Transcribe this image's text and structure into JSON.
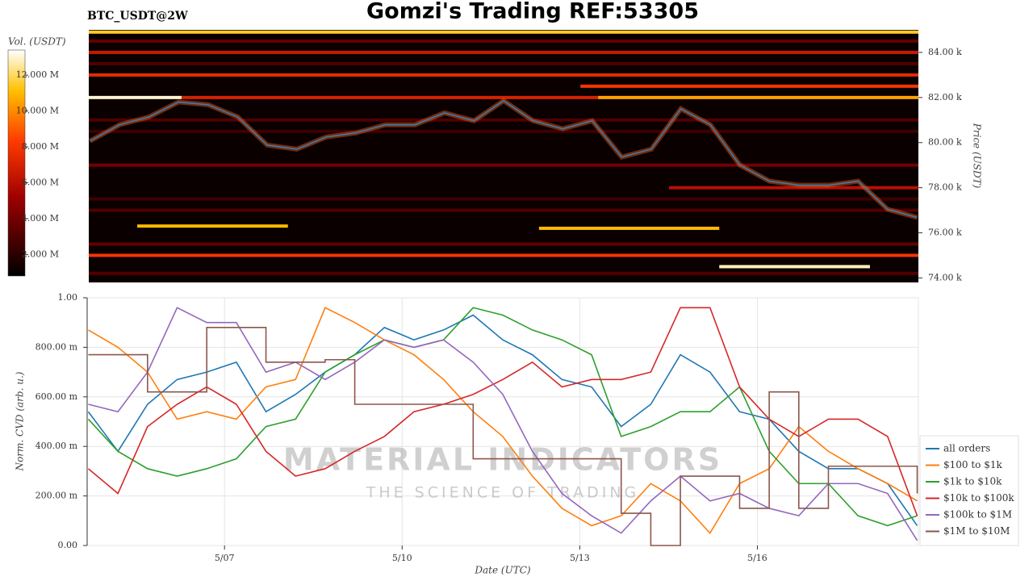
{
  "title": "Gomzi's Trading REF:53305",
  "watermark": {
    "brand": "MATERIAL INDICATORS",
    "tagline": "THE SCIENCE OF TRADING"
  },
  "chart_data": [
    {
      "type": "heatmap",
      "title": "BTC_USDT@2W",
      "y_label": "Price (USDT)",
      "xlim": [
        4.68,
        18.72
      ],
      "ylim": [
        73800,
        85000
      ],
      "yticks": [
        {
          "value": 74000,
          "label": "74.00 k"
        },
        {
          "value": 76000,
          "label": "76.00 k"
        },
        {
          "value": 78000,
          "label": "78.00 k"
        },
        {
          "value": 80000,
          "label": "80.00 k"
        },
        {
          "value": 82000,
          "label": "82.00 k"
        },
        {
          "value": 84000,
          "label": "84.00 k"
        }
      ],
      "colorbar": {
        "label": "Vol. (USDT)",
        "lim": [
          800000,
          13400000
        ],
        "ticks": [
          {
            "value": 2000000,
            "label": "2.000 M"
          },
          {
            "value": 4000000,
            "label": "4.000 M"
          },
          {
            "value": 6000000,
            "label": "6.000 M"
          },
          {
            "value": 8000000,
            "label": "8.000 M"
          },
          {
            "value": 10000000,
            "label": "10.000 M"
          },
          {
            "value": 12000000,
            "label": "12.000 M"
          }
        ]
      },
      "levels": [
        {
          "price": 84900,
          "volume": 11500000,
          "x": [
            4.68,
            18.72
          ]
        },
        {
          "price": 84000,
          "volume": 6500000,
          "x": [
            4.68,
            18.72
          ]
        },
        {
          "price": 83000,
          "volume": 7500000,
          "x": [
            4.68,
            18.72
          ]
        },
        {
          "price": 82500,
          "volume": 8000000,
          "x": [
            13.0,
            18.72
          ]
        },
        {
          "price": 82000,
          "volume": 13000000,
          "x": [
            4.68,
            6.25
          ]
        },
        {
          "price": 82000,
          "volume": 7000000,
          "x": [
            6.25,
            13.3
          ]
        },
        {
          "price": 82000,
          "volume": 10500000,
          "x": [
            13.3,
            18.72
          ]
        },
        {
          "price": 83500,
          "volume": 3000000,
          "x": [
            4.68,
            18.72
          ]
        },
        {
          "price": 84500,
          "volume": 3500000,
          "x": [
            4.68,
            18.72
          ]
        },
        {
          "price": 81000,
          "volume": 3000000,
          "x": [
            4.68,
            18.72
          ]
        },
        {
          "price": 80500,
          "volume": 2500000,
          "x": [
            4.68,
            18.72
          ]
        },
        {
          "price": 79000,
          "volume": 4000000,
          "x": [
            4.68,
            18.72
          ]
        },
        {
          "price": 78000,
          "volume": 6000000,
          "x": [
            14.5,
            18.72
          ]
        },
        {
          "price": 77500,
          "volume": 2500000,
          "x": [
            4.68,
            18.72
          ]
        },
        {
          "price": 77000,
          "volume": 3000000,
          "x": [
            4.68,
            18.72
          ]
        },
        {
          "price": 76300,
          "volume": 11000000,
          "x": [
            5.5,
            8.05
          ]
        },
        {
          "price": 76200,
          "volume": 11000000,
          "x": [
            12.3,
            15.35
          ]
        },
        {
          "price": 75500,
          "volume": 3500000,
          "x": [
            4.68,
            18.72
          ]
        },
        {
          "price": 75000,
          "volume": 8000000,
          "x": [
            4.68,
            18.72
          ]
        },
        {
          "price": 74500,
          "volume": 12800000,
          "x": [
            15.35,
            17.9
          ]
        },
        {
          "price": 74200,
          "volume": 3000000,
          "x": [
            4.68,
            18.72
          ]
        }
      ],
      "x": [
        4.7,
        5.2,
        5.7,
        6.2,
        6.7,
        7.2,
        7.7,
        8.2,
        8.7,
        9.2,
        9.7,
        10.2,
        10.7,
        11.2,
        11.7,
        12.2,
        12.7,
        13.2,
        13.7,
        14.2,
        14.7,
        15.2,
        15.7,
        16.2,
        16.7,
        17.2,
        17.7,
        18.2,
        18.7
      ],
      "price_line": {
        "color": "#2f7fc1",
        "values": [
          80070,
          80790,
          81140,
          81800,
          81680,
          81140,
          79890,
          79710,
          80250,
          80430,
          80790,
          80790,
          81320,
          80970,
          81860,
          80970,
          80610,
          80970,
          79360,
          79710,
          81500,
          80790,
          79000,
          78290,
          78110,
          78110,
          78290,
          77040,
          76680
        ]
      }
    },
    {
      "type": "line",
      "x_label": "Date (UTC)",
      "y_label": "Norm. CVD (arb. u.)",
      "grid": true,
      "legend": "right",
      "xlim": [
        4.68,
        18.72
      ],
      "ylim": [
        0,
        1
      ],
      "xticks": [
        {
          "value": 7,
          "label": "5/07"
        },
        {
          "value": 10,
          "label": "5/10"
        },
        {
          "value": 13,
          "label": "5/13"
        },
        {
          "value": 16,
          "label": "5/16"
        }
      ],
      "yticks": [
        {
          "value": 0,
          "label": "0.00"
        },
        {
          "value": 0.2,
          "label": "200.00 m"
        },
        {
          "value": 0.4,
          "label": "400.00 m"
        },
        {
          "value": 0.6,
          "label": "600.00 m"
        },
        {
          "value": 0.8,
          "label": "800.00 m"
        },
        {
          "value": 1,
          "label": "1.00"
        }
      ],
      "x": [
        4.7,
        5.2,
        5.7,
        6.2,
        6.7,
        7.2,
        7.7,
        8.2,
        8.7,
        9.2,
        9.7,
        10.2,
        10.7,
        11.2,
        11.7,
        12.2,
        12.7,
        13.2,
        13.7,
        14.2,
        14.7,
        15.2,
        15.7,
        16.2,
        16.7,
        17.2,
        17.7,
        18.2,
        18.7
      ],
      "series": [
        {
          "name": "all orders",
          "color": "#1f77b4",
          "values": [
            0.54,
            0.38,
            0.57,
            0.67,
            0.7,
            0.74,
            0.54,
            0.61,
            0.7,
            0.77,
            0.88,
            0.83,
            0.87,
            0.93,
            0.83,
            0.77,
            0.67,
            0.64,
            0.48,
            0.57,
            0.77,
            0.7,
            0.54,
            0.51,
            0.38,
            0.31,
            0.31,
            0.25,
            0.08
          ]
        },
        {
          "name": "$100 to $1k",
          "color": "#ff7f0e",
          "values": [
            0.87,
            0.8,
            0.7,
            0.51,
            0.54,
            0.51,
            0.64,
            0.67,
            0.96,
            0.9,
            0.83,
            0.77,
            0.67,
            0.54,
            0.44,
            0.28,
            0.15,
            0.08,
            0.12,
            0.25,
            0.18,
            0.05,
            0.25,
            0.31,
            0.48,
            0.38,
            0.31,
            0.25,
            0.18
          ]
        },
        {
          "name": "$1k to $10k",
          "color": "#2ca02c",
          "values": [
            0.51,
            0.38,
            0.31,
            0.28,
            0.31,
            0.35,
            0.48,
            0.51,
            0.7,
            0.77,
            0.83,
            0.8,
            0.83,
            0.96,
            0.93,
            0.87,
            0.83,
            0.77,
            0.44,
            0.48,
            0.54,
            0.54,
            0.64,
            0.38,
            0.25,
            0.25,
            0.12,
            0.08,
            0.12
          ]
        },
        {
          "name": "$10k to $100k",
          "color": "#d62728",
          "values": [
            0.31,
            0.21,
            0.48,
            0.57,
            0.64,
            0.57,
            0.38,
            0.28,
            0.31,
            0.38,
            0.44,
            0.54,
            0.57,
            0.61,
            0.67,
            0.74,
            0.64,
            0.67,
            0.67,
            0.7,
            0.96,
            0.96,
            0.64,
            0.51,
            0.44,
            0.51,
            0.51,
            0.44,
            0.12
          ]
        },
        {
          "name": "$100k to $1M",
          "color": "#9467bd",
          "values": [
            0.57,
            0.54,
            0.7,
            0.96,
            0.9,
            0.9,
            0.7,
            0.74,
            0.67,
            0.74,
            0.83,
            0.8,
            0.83,
            0.74,
            0.61,
            0.38,
            0.21,
            0.12,
            0.05,
            0.18,
            0.28,
            0.18,
            0.21,
            0.15,
            0.12,
            0.25,
            0.25,
            0.21,
            0.02
          ]
        },
        {
          "name": "$1M to $10M",
          "color": "#8c564b",
          "step": true,
          "values": [
            0.77,
            0.77,
            0.62,
            0.62,
            0.88,
            0.88,
            0.74,
            0.74,
            0.75,
            0.57,
            0.57,
            0.57,
            0.57,
            0.35,
            0.35,
            0.35,
            0.35,
            0.35,
            0.13,
            0,
            0.28,
            0.28,
            0.15,
            0.62,
            0.15,
            0.32,
            0.32,
            0.32,
            0.21
          ]
        }
      ]
    }
  ]
}
